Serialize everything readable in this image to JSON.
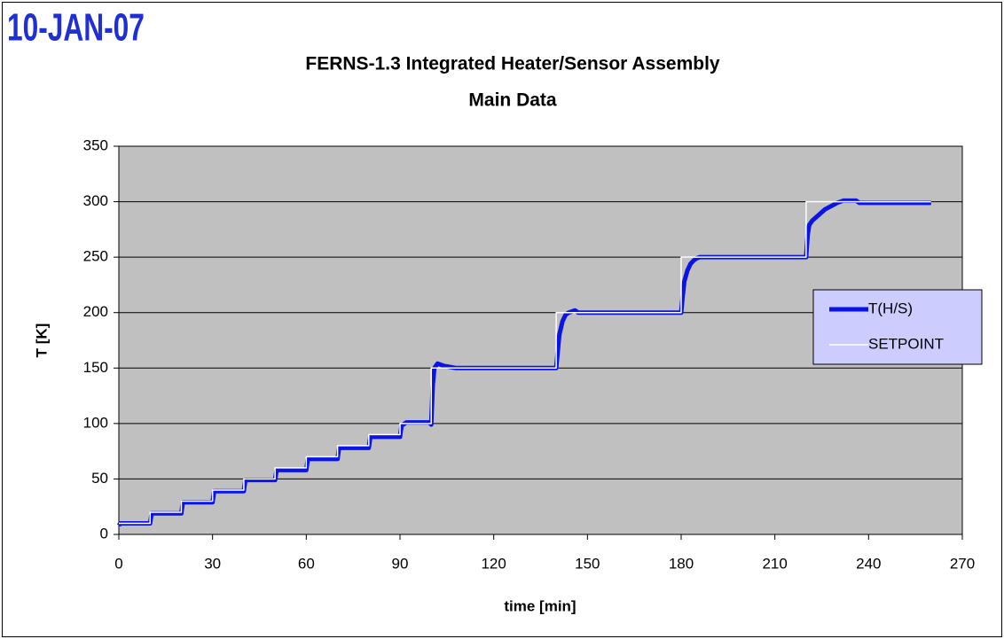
{
  "chart_data": {
    "type": "line",
    "stamp": "10-JAN-07",
    "title": "FERNS-1.3 Integrated Heater/Sensor Assembly",
    "subtitle": "Main Data",
    "x_label": "time [min]",
    "y_label": "T [K]",
    "xlim": [
      0,
      270
    ],
    "xticks": [
      0,
      30,
      60,
      90,
      120,
      150,
      180,
      210,
      240,
      270
    ],
    "ylim": [
      0,
      350
    ],
    "yticks": [
      0,
      50,
      100,
      150,
      200,
      250,
      300,
      350
    ],
    "grid": true,
    "legend": "right",
    "series": [
      {
        "name": "T(H/S)",
        "color": "#0a14e6",
        "x": [
          0,
          0.5,
          10,
          10.5,
          20,
          20.5,
          30,
          30.5,
          40,
          40.5,
          50,
          50.5,
          60,
          60.5,
          70,
          70.5,
          80,
          80.5,
          90,
          90.5,
          92,
          99.5,
          100,
          100.5,
          101,
          102,
          104,
          108,
          140,
          140.5,
          141,
          142,
          143,
          144,
          146,
          147,
          180,
          180.5,
          181,
          182,
          183,
          184,
          185,
          186,
          187,
          220,
          220.5,
          221,
          222,
          224,
          226,
          228,
          230,
          232,
          236,
          237,
          260
        ],
        "values": [
          8,
          10,
          10,
          19,
          19,
          29,
          29,
          39,
          39,
          49,
          49,
          58,
          58,
          68,
          68,
          78,
          78,
          88,
          88,
          98,
          101,
          101,
          99,
          135,
          150,
          154,
          152,
          150,
          150,
          165,
          180,
          192,
          198,
          200,
          202,
          200,
          200,
          215,
          228,
          238,
          244,
          247,
          249,
          250,
          250,
          250,
          270,
          279,
          283,
          288,
          293,
          296,
          299,
          301,
          301,
          299,
          299
        ]
      },
      {
        "name": "SETPOINT",
        "color": "#ffffff",
        "x": [
          0,
          10,
          10,
          20,
          20,
          30,
          30,
          40,
          40,
          50,
          50,
          60,
          60,
          70,
          70,
          80,
          80,
          90,
          90,
          100,
          100,
          140,
          140,
          180,
          180,
          220,
          220,
          260
        ],
        "values": [
          10,
          10,
          20,
          20,
          30,
          30,
          40,
          40,
          50,
          50,
          60,
          60,
          70,
          70,
          80,
          80,
          90,
          90,
          100,
          100,
          150,
          150,
          200,
          200,
          250,
          250,
          300,
          300
        ]
      }
    ]
  }
}
